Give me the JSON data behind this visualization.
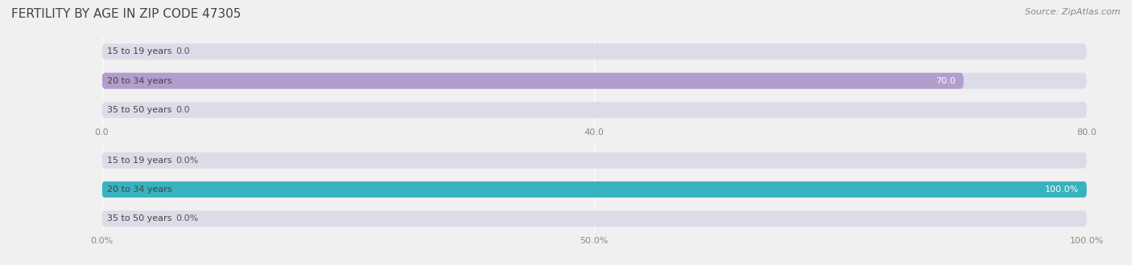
{
  "title": "FERTILITY BY AGE IN ZIP CODE 47305",
  "source_text": "Source: ZipAtlas.com",
  "label_color": "#555555",
  "background_color": "#f0f0f0",
  "title_fontsize": 11,
  "source_fontsize": 8,
  "tick_fontsize": 8,
  "label_fontsize": 8,
  "value_fontsize": 8,
  "top_chart": {
    "categories": [
      "15 to 19 years",
      "20 to 34 years",
      "35 to 50 years"
    ],
    "values": [
      0.0,
      70.0,
      0.0
    ],
    "bar_color": "#b39dcc",
    "bar_bg_color": "#dcdce8",
    "xlim": [
      0,
      80.0
    ],
    "xticks": [
      0.0,
      40.0,
      80.0
    ],
    "bar_height": 0.55
  },
  "bottom_chart": {
    "categories": [
      "15 to 19 years",
      "20 to 34 years",
      "35 to 50 years"
    ],
    "values": [
      0.0,
      100.0,
      0.0
    ],
    "bar_color": "#38b2bc",
    "bar_bg_color": "#dcdce8",
    "xlim": [
      0,
      100.0
    ],
    "xticks": [
      0.0,
      50.0,
      100.0
    ],
    "xtick_labels": [
      "0.0%",
      "50.0%",
      "100.0%"
    ],
    "bar_height": 0.55
  }
}
